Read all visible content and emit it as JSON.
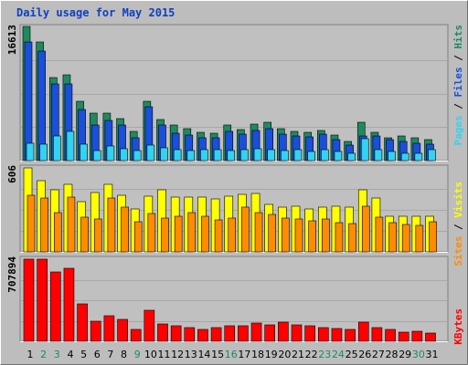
{
  "chart_data": [
    {
      "type": "bar",
      "title": "Daily usage for May 2015",
      "max_label": "16613",
      "legend": [
        "Pages",
        "Files",
        "Hits"
      ],
      "series": [
        {
          "name": "Hits",
          "values": [
            16613,
            14700,
            10300,
            10600,
            7350,
            5900,
            5900,
            5250,
            3650,
            7300,
            5100,
            4450,
            3950,
            3450,
            3400,
            4450,
            3850,
            4500,
            4800,
            3900,
            3600,
            3500,
            3700,
            3200,
            2400,
            4800,
            3450,
            2850,
            3100,
            2850,
            2600
          ]
        },
        {
          "name": "Files",
          "values": [
            14700,
            13600,
            9450,
            9450,
            6300,
            4450,
            4950,
            4450,
            2850,
            6650,
            4450,
            3400,
            3200,
            2850,
            2800,
            3650,
            3250,
            3750,
            3950,
            3250,
            3050,
            2900,
            3250,
            2550,
            1950,
            3050,
            3100,
            2550,
            2400,
            2150,
            2000
          ]
        },
        {
          "name": "Pages",
          "values": [
            2200,
            2000,
            3000,
            3600,
            2000,
            1200,
            1800,
            1500,
            1200,
            1900,
            1600,
            1300,
            1250,
            1300,
            1300,
            1200,
            1300,
            1500,
            1400,
            1200,
            1300,
            1150,
            1300,
            1100,
            900,
            2700,
            1300,
            1100,
            900,
            900,
            1300
          ]
        }
      ]
    },
    {
      "type": "bar",
      "max_label": "606",
      "legend": [
        "Sites",
        "Visits"
      ],
      "series": [
        {
          "name": "Visits",
          "values": [
            606,
            515,
            445,
            485,
            365,
            425,
            485,
            410,
            310,
            405,
            445,
            395,
            395,
            395,
            380,
            400,
            415,
            420,
            340,
            320,
            330,
            310,
            325,
            330,
            325,
            450,
            390,
            255,
            255,
            255,
            255
          ]
        },
        {
          "name": "Sites",
          "values": [
            410,
            390,
            285,
            395,
            250,
            240,
            390,
            320,
            215,
            275,
            245,
            255,
            285,
            260,
            230,
            245,
            320,
            280,
            270,
            245,
            240,
            225,
            240,
            210,
            205,
            330,
            250,
            210,
            195,
            190,
            215
          ]
        }
      ]
    },
    {
      "type": "bar",
      "max_label": "707894",
      "legend": [
        "KBytes"
      ],
      "series": [
        {
          "name": "KBytes",
          "values": [
            707894,
            707894,
            601000,
            633000,
            323000,
            171000,
            219000,
            191000,
            104000,
            269000,
            150000,
            133000,
            116000,
            106000,
            118000,
            136000,
            131000,
            158000,
            141000,
            163000,
            141000,
            136000,
            120000,
            112000,
            106000,
            167000,
            120000,
            102000,
            82000,
            87000,
            68000
          ]
        }
      ]
    }
  ],
  "x_labels": [
    "1",
    "2",
    "3",
    "4",
    "5",
    "6",
    "7",
    "8",
    "9",
    "10",
    "11",
    "12",
    "13",
    "14",
    "15",
    "16",
    "17",
    "18",
    "19",
    "20",
    "21",
    "22",
    "23",
    "24",
    "25",
    "26",
    "27",
    "28",
    "29",
    "30",
    "31"
  ],
  "weekend_days": [
    2,
    3,
    9,
    16,
    23,
    24,
    30
  ],
  "colors": {
    "hits": "#1e8a5e",
    "files": "#1a4fdc",
    "pages": "#33d3f0",
    "visits": "#ffff00",
    "sites": "#ff8c00",
    "kbytes": "#ff0000",
    "panel": "#c0c0c0",
    "title": "#1040c0",
    "weekend_label": "#1e8a5e",
    "weekday_label": "#000000"
  }
}
